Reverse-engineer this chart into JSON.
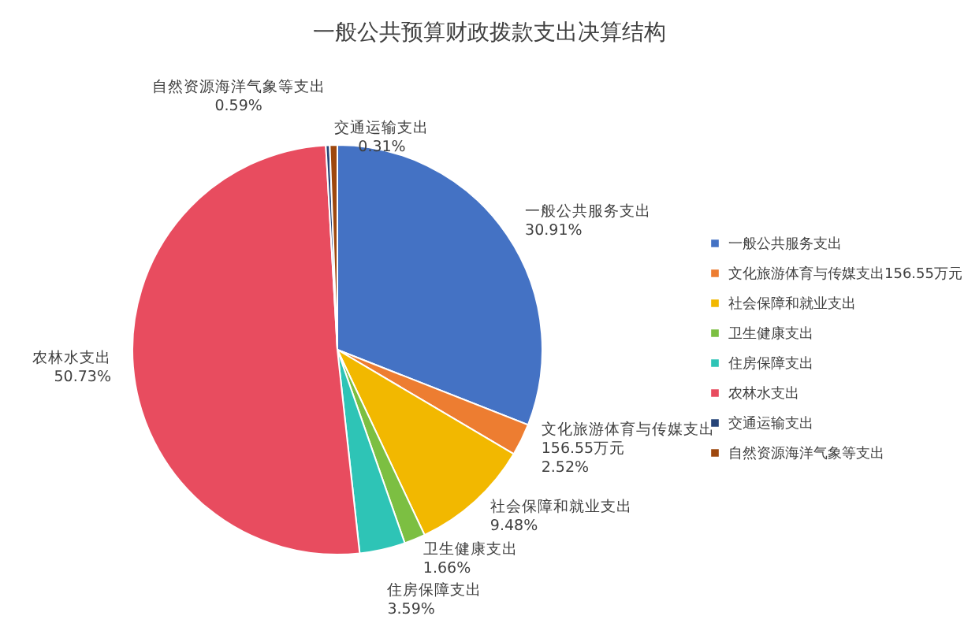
{
  "chart_data": {
    "type": "pie",
    "title": "一般公共预算财政拨款支出决算结构",
    "categories": [
      "一般公共服务支出",
      "文化旅游体育与传媒支出156.55万元",
      "社会保障和就业支出",
      "卫生健康支出",
      "住房保障支出",
      "农林水支出",
      "交通运输支出",
      "自然资源海洋气象等支出"
    ],
    "values": [
      30.91,
      2.52,
      9.48,
      1.66,
      3.59,
      50.73,
      0.31,
      0.59
    ],
    "value_labels": [
      "30.91%",
      "2.52%",
      "9.48%",
      "1.66%",
      "3.59%",
      "50.73%",
      "0.31%",
      "0.59%"
    ],
    "colors": [
      "#4472c4",
      "#ed7d31",
      "#f2b800",
      "#7cbf42",
      "#2ec4b6",
      "#e84c5f",
      "#264478",
      "#9e480e"
    ],
    "legend": "right"
  }
}
